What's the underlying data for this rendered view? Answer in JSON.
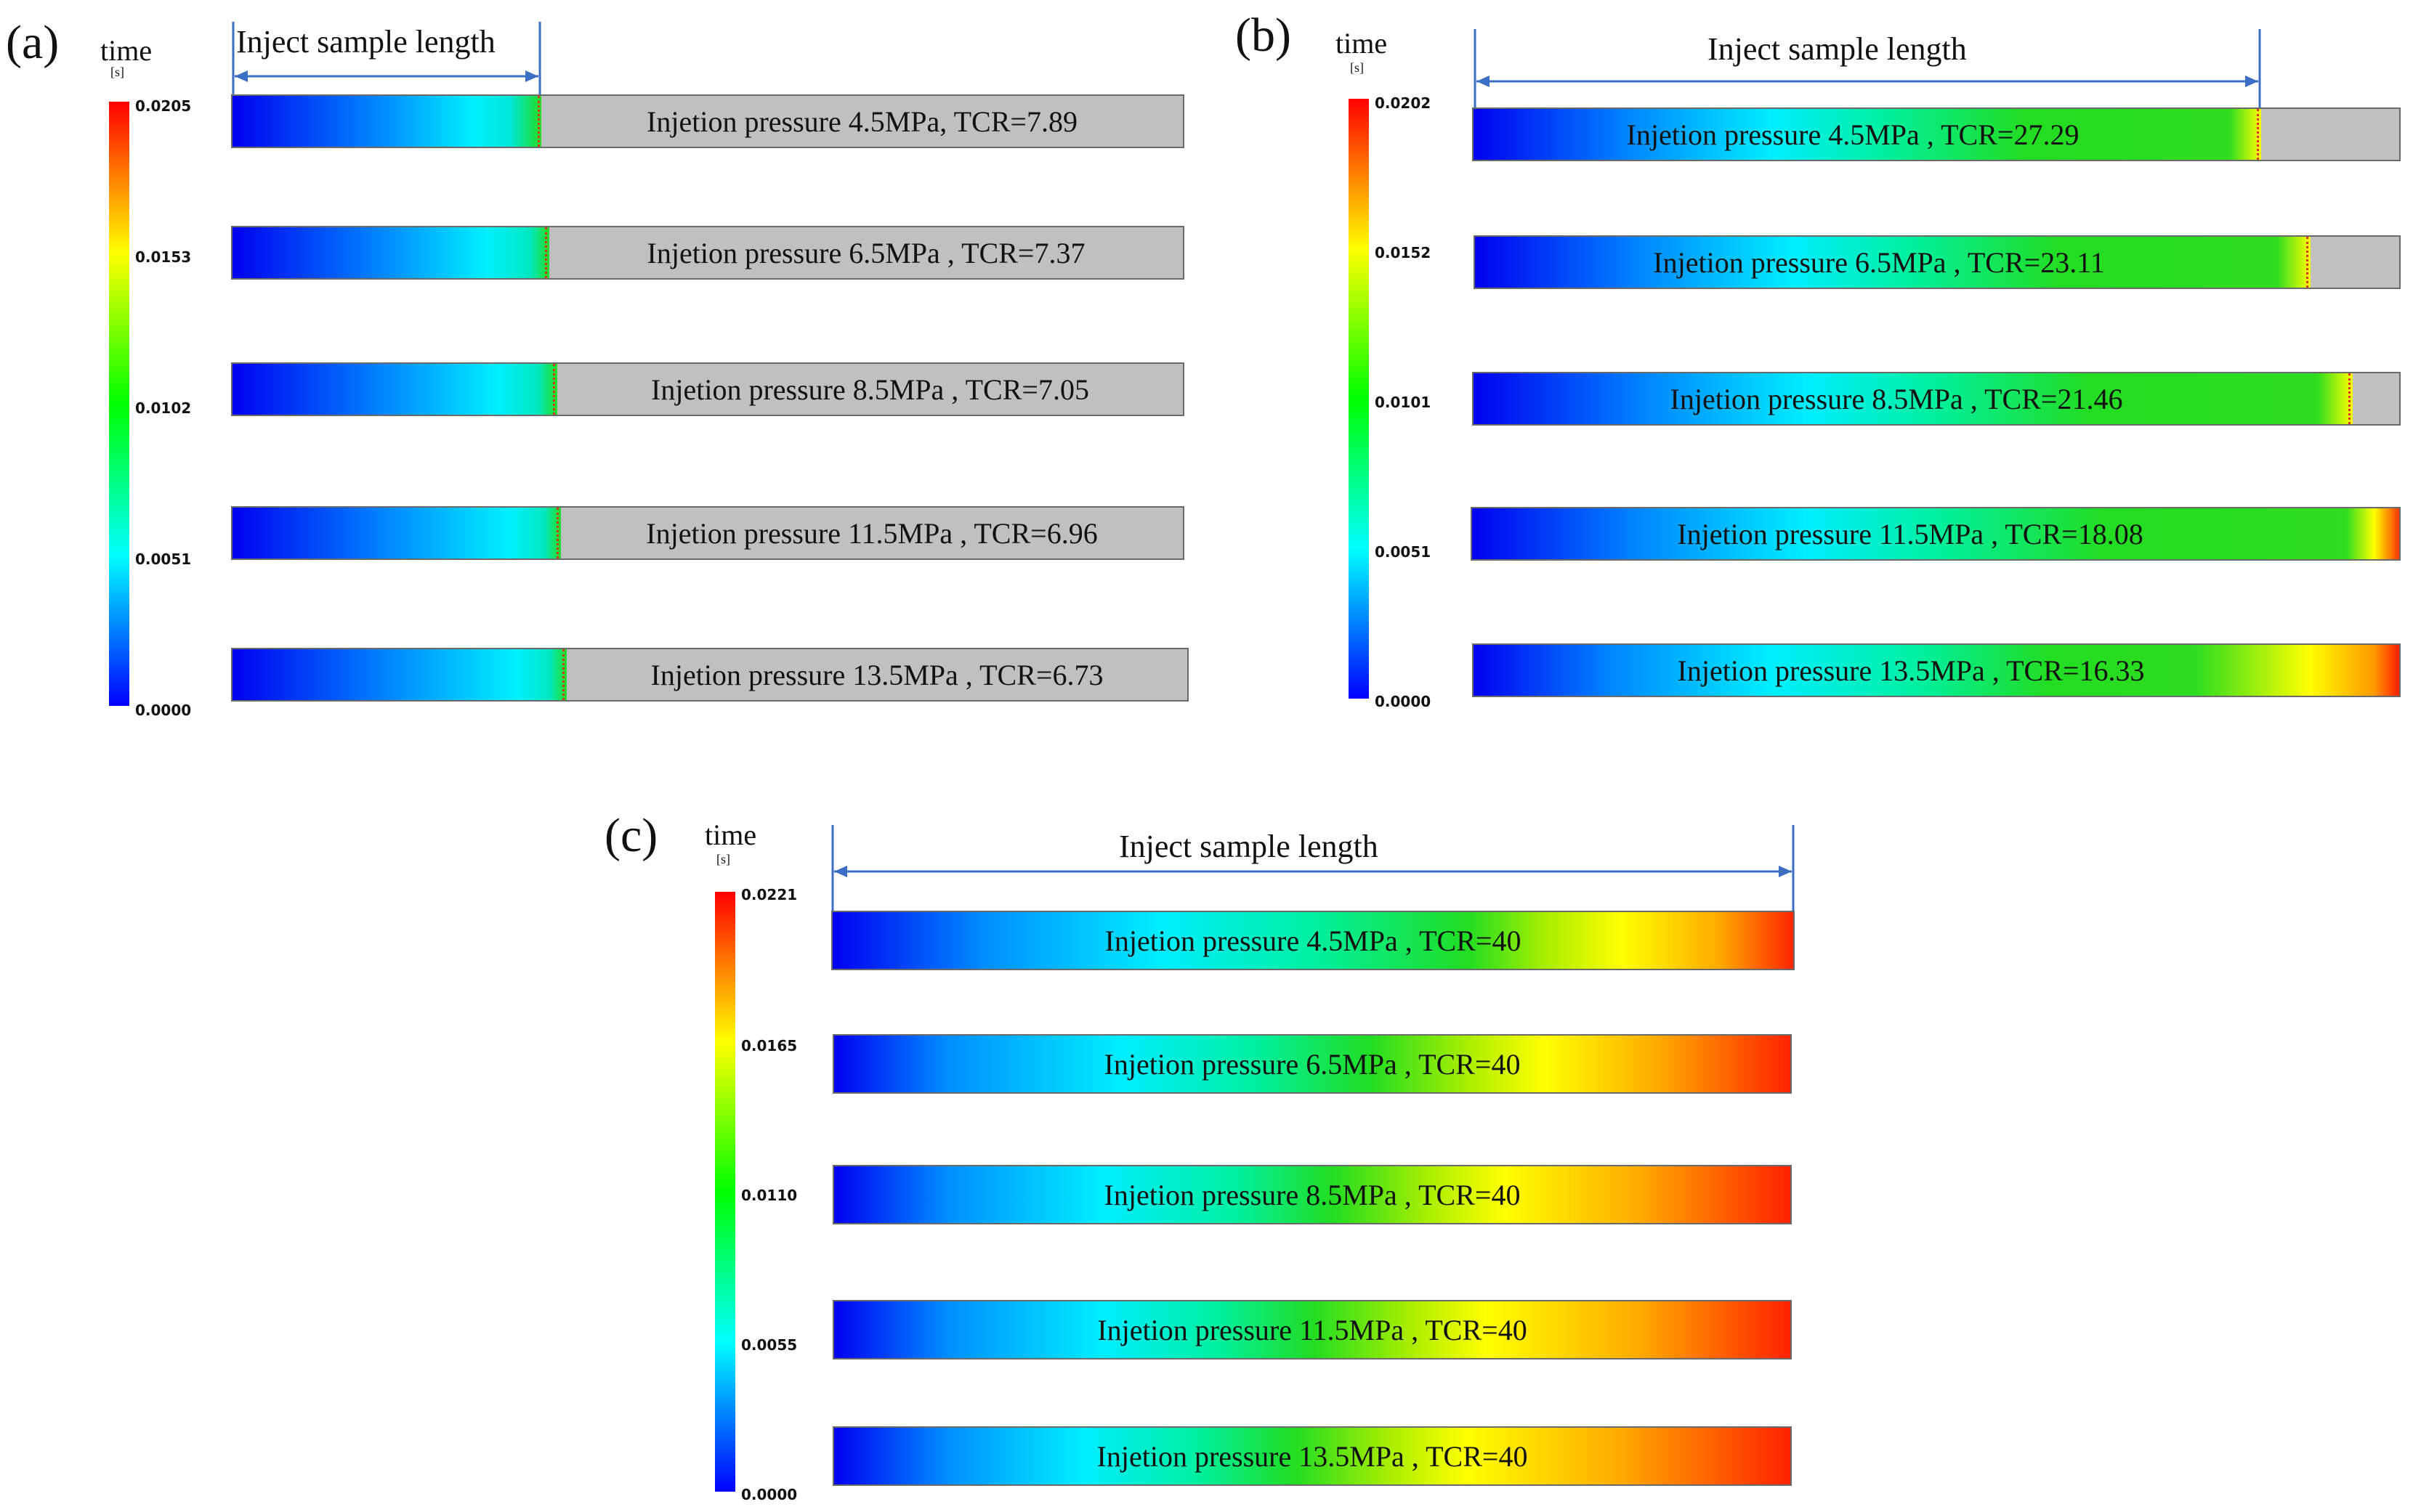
{
  "panels": [
    {
      "label": "(a)",
      "colorbar": {
        "title": "time",
        "unit": "[s]",
        "ticks": [
          "0.0205",
          "0.0153",
          "0.0102",
          "0.0051",
          "0.0000"
        ]
      },
      "dimension_label": "Inject sample length",
      "bars": [
        {
          "caption": "Injetion pressure 4.5MPa, TCR=7.89"
        },
        {
          "caption": "Injetion pressure 6.5MPa , TCR=7.37"
        },
        {
          "caption": "Injetion pressure 8.5MPa , TCR=7.05"
        },
        {
          "caption": "Injetion pressure 11.5MPa , TCR=6.96"
        },
        {
          "caption": "Injetion pressure 13.5MPa , TCR=6.73"
        }
      ]
    },
    {
      "label": "(b)",
      "colorbar": {
        "title": "time",
        "unit": "[s]",
        "ticks": [
          "0.0202",
          "0.0152",
          "0.0101",
          "0.0051",
          "0.0000"
        ]
      },
      "dimension_label": "Inject sample length",
      "bars": [
        {
          "caption": "Injetion pressure 4.5MPa , TCR=27.29"
        },
        {
          "caption": "Injetion pressure 6.5MPa , TCR=23.11"
        },
        {
          "caption": "Injetion pressure 8.5MPa , TCR=21.46"
        },
        {
          "caption": "Injetion pressure 11.5MPa , TCR=18.08"
        },
        {
          "caption": "Injetion pressure 13.5MPa , TCR=16.33"
        }
      ]
    },
    {
      "label": "(c)",
      "colorbar": {
        "title": "time",
        "unit": "[s]",
        "ticks": [
          "0.0221",
          "0.0165",
          "0.0110",
          "0.0055",
          "0.0000"
        ]
      },
      "dimension_label": "Inject sample length",
      "bars": [
        {
          "caption": "Injetion pressure 4.5MPa , TCR=40"
        },
        {
          "caption": "Injetion pressure 6.5MPa , TCR=40"
        },
        {
          "caption": "Injetion pressure 8.5MPa , TCR=40"
        },
        {
          "caption": "Injetion pressure 11.5MPa , TCR=40"
        },
        {
          "caption": "Injetion pressure 13.5MPa , TCR=40"
        }
      ]
    }
  ]
}
